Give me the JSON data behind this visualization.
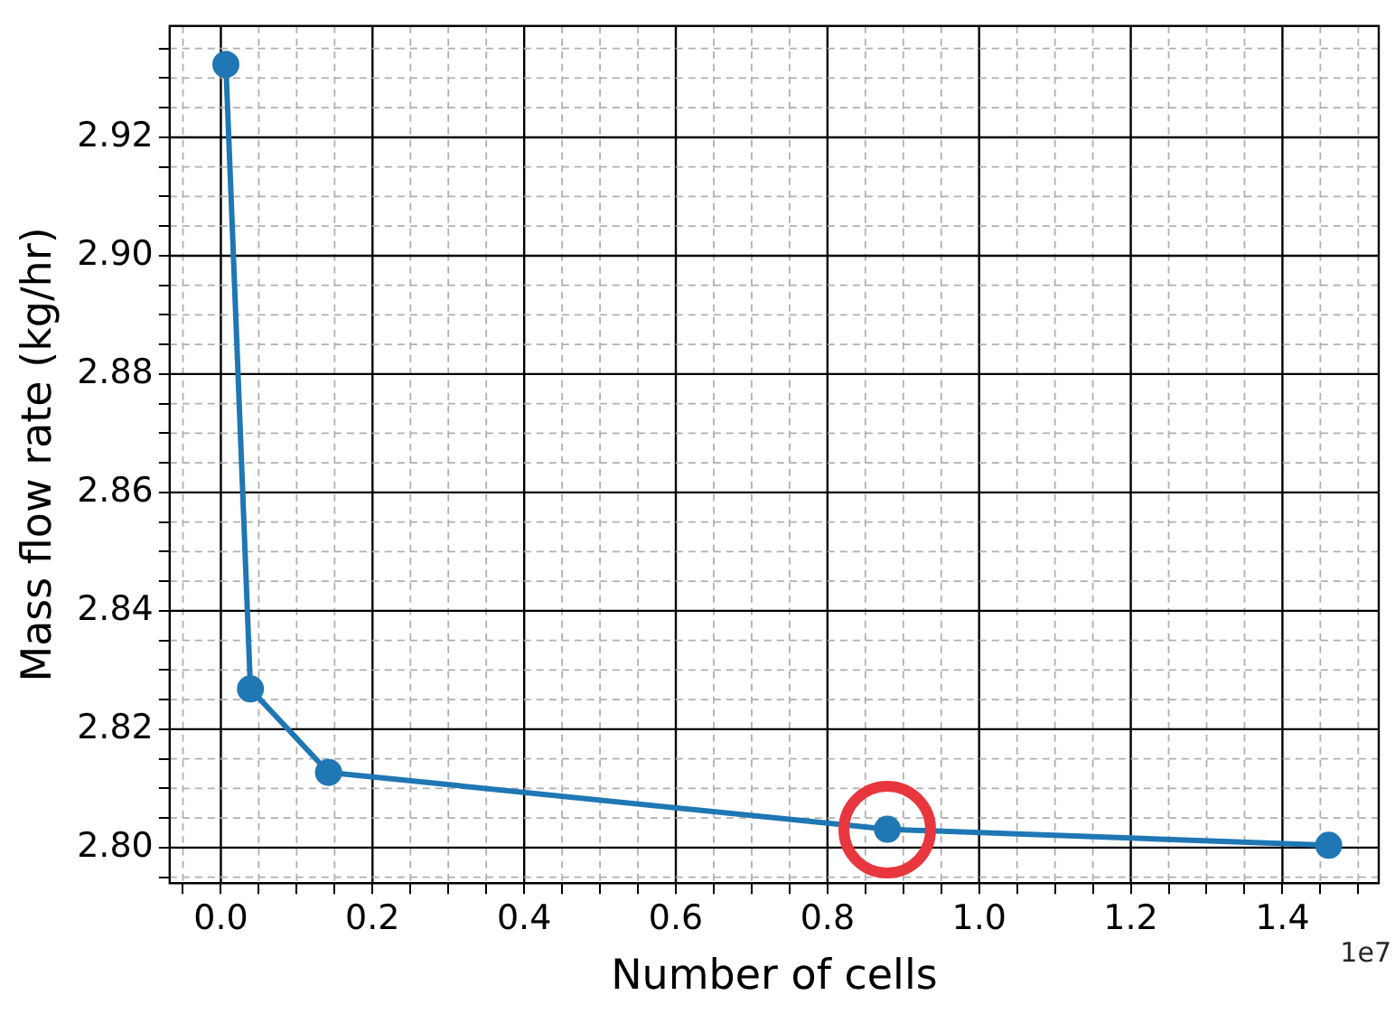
{
  "chart_data": {
    "type": "line",
    "xlabel": "Number of cells",
    "ylabel": "Mass flow rate (kg/hr)",
    "annotations": [
      "1e7"
    ],
    "x": [
      0.0066,
      0.039,
      0.142,
      0.879,
      1.461
    ],
    "series": [
      {
        "color": "#1f77b4",
        "values": [
          2.9323,
          2.8268,
          2.8127,
          2.8031,
          2.8004
        ]
      }
    ],
    "marker": "circle",
    "line_style": "solid",
    "grid": true,
    "legend": false,
    "xlim": [
      -0.0675,
      1.527
    ],
    "ylim": [
      2.794,
      2.9388
    ],
    "xticks": [
      {
        "value": -0.05,
        "label": null
      },
      {
        "value": 0,
        "label": "0.0"
      },
      {
        "value": 0.05,
        "label": null
      },
      {
        "value": 0.1,
        "label": null
      },
      {
        "value": 0.15,
        "label": null
      },
      {
        "value": 0.2,
        "label": "0.2"
      },
      {
        "value": 0.25,
        "label": null
      },
      {
        "value": 0.3,
        "label": null
      },
      {
        "value": 0.35,
        "label": null
      },
      {
        "value": 0.4,
        "label": "0.4"
      },
      {
        "value": 0.45,
        "label": null
      },
      {
        "value": 0.5,
        "label": null
      },
      {
        "value": 0.55,
        "label": null
      },
      {
        "value": 0.6,
        "label": "0.6"
      },
      {
        "value": 0.65,
        "label": null
      },
      {
        "value": 0.7,
        "label": null
      },
      {
        "value": 0.75,
        "label": null
      },
      {
        "value": 0.8,
        "label": "0.8"
      },
      {
        "value": 0.85,
        "label": null
      },
      {
        "value": 0.9,
        "label": null
      },
      {
        "value": 0.95,
        "label": null
      },
      {
        "value": 1.0,
        "label": "1.0"
      },
      {
        "value": 1.05,
        "label": null
      },
      {
        "value": 1.1,
        "label": null
      },
      {
        "value": 1.15,
        "label": null
      },
      {
        "value": 1.2,
        "label": "1.2"
      },
      {
        "value": 1.25,
        "label": null
      },
      {
        "value": 1.3,
        "label": null
      },
      {
        "value": 1.35,
        "label": null
      },
      {
        "value": 1.4,
        "label": "1.4"
      },
      {
        "value": 1.45,
        "label": null
      },
      {
        "value": 1.5,
        "label": null
      }
    ],
    "yticks": [
      {
        "value": 2.795,
        "label": null
      },
      {
        "value": 2.8,
        "label": "2.80"
      },
      {
        "value": 2.805,
        "label": null
      },
      {
        "value": 2.81,
        "label": null
      },
      {
        "value": 2.815,
        "label": null
      },
      {
        "value": 2.82,
        "label": "2.82"
      },
      {
        "value": 2.825,
        "label": null
      },
      {
        "value": 2.83,
        "label": null
      },
      {
        "value": 2.835,
        "label": null
      },
      {
        "value": 2.84,
        "label": "2.84"
      },
      {
        "value": 2.845,
        "label": null
      },
      {
        "value": 2.85,
        "label": null
      },
      {
        "value": 2.855,
        "label": null
      },
      {
        "value": 2.86,
        "label": "2.86"
      },
      {
        "value": 2.865,
        "label": null
      },
      {
        "value": 2.87,
        "label": null
      },
      {
        "value": 2.875,
        "label": null
      },
      {
        "value": 2.88,
        "label": "2.88"
      },
      {
        "value": 2.885,
        "label": null
      },
      {
        "value": 2.89,
        "label": null
      },
      {
        "value": 2.895,
        "label": null
      },
      {
        "value": 2.9,
        "label": "2.90"
      },
      {
        "value": 2.905,
        "label": null
      },
      {
        "value": 2.91,
        "label": null
      },
      {
        "value": 2.915,
        "label": null
      },
      {
        "value": 2.92,
        "label": "2.92"
      },
      {
        "value": 2.925,
        "label": null
      },
      {
        "value": 2.93,
        "label": null
      },
      {
        "value": 2.935,
        "label": null
      }
    ]
  }
}
